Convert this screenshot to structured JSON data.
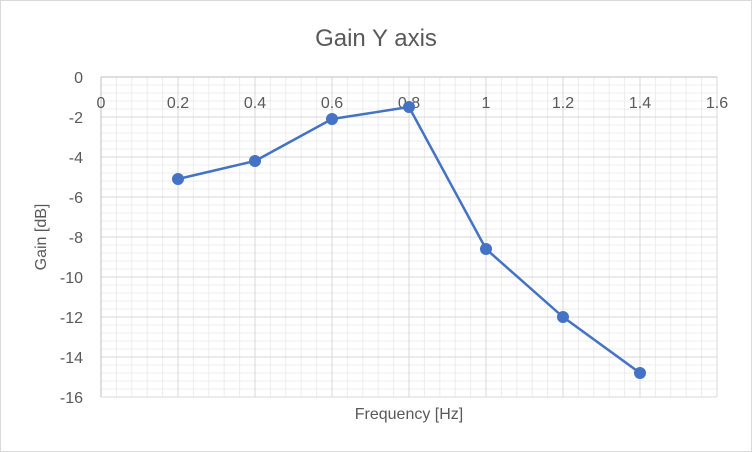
{
  "chart_data": {
    "type": "scatter",
    "title": "Gain Y axis",
    "xlabel": "Frequency [Hz]",
    "ylabel": "Gain [dB]",
    "xlim": [
      0,
      1.6
    ],
    "ylim": [
      -16,
      0
    ],
    "x_ticks": [
      "0",
      "0.2",
      "0.4",
      "0.6",
      "0.8",
      "1",
      "1.2",
      "1.4",
      "1.6"
    ],
    "y_ticks": [
      "0",
      "-2",
      "-4",
      "-6",
      "-8",
      "-10",
      "-12",
      "-14",
      "-16"
    ],
    "x_tick_position": "top",
    "grid": true,
    "minor_grid": true,
    "lines_connected": true,
    "series": [
      {
        "color": "#4472c4",
        "points": [
          {
            "x": 0.2,
            "y": -5.1
          },
          {
            "x": 0.4,
            "y": -4.2
          },
          {
            "x": 0.6,
            "y": -2.1
          },
          {
            "x": 0.8,
            "y": -1.5
          },
          {
            "x": 1.0,
            "y": -8.6
          },
          {
            "x": 1.2,
            "y": -12.0
          },
          {
            "x": 1.4,
            "y": -14.8
          }
        ]
      }
    ]
  }
}
